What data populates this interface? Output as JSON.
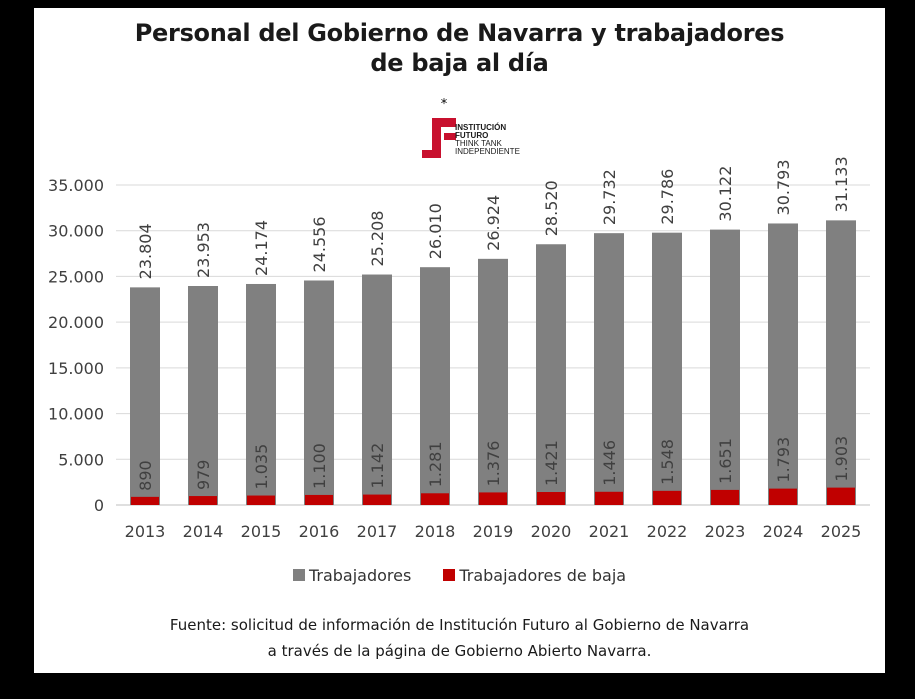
{
  "header": {
    "title_line1": "Personal del Gobierno de Navarra y trabajadores",
    "title_line2": "de baja al día",
    "asterisk": "*"
  },
  "logo": {
    "line1": "INSTITUCIÓN",
    "line2": "FUTURO",
    "line3": "THINK TANK",
    "line4": "INDEPENDIENTE",
    "color": "#c8102e"
  },
  "chart_data": {
    "type": "bar",
    "categories": [
      "2013",
      "2014",
      "2015",
      "2016",
      "2017",
      "2018",
      "2019",
      "2020",
      "2021",
      "2022",
      "2023",
      "2024",
      "2025"
    ],
    "series": [
      {
        "name": "Trabajadores",
        "color": "#808080",
        "values": [
          23804,
          23953,
          24174,
          24556,
          25208,
          26010,
          26924,
          28520,
          29732,
          29786,
          30122,
          30793,
          31133
        ],
        "labels": [
          "23.804",
          "23.953",
          "24.174",
          "24.556",
          "25.208",
          "26.010",
          "26.924",
          "28.520",
          "29.732",
          "29.786",
          "30.122",
          "30.793",
          "31.133"
        ]
      },
      {
        "name": "Trabajadores de baja",
        "color": "#c00000",
        "values": [
          890,
          979,
          1035,
          1100,
          1142,
          1281,
          1376,
          1421,
          1446,
          1548,
          1651,
          1793,
          1903
        ],
        "labels": [
          "890",
          "979",
          "1.035",
          "1.100",
          "1.142",
          "1.281",
          "1.376",
          "1.421",
          "1.446",
          "1.548",
          "1.651",
          "1.793",
          "1.903"
        ]
      }
    ],
    "ylim": [
      0,
      35000
    ],
    "yticks": [
      0,
      5000,
      10000,
      15000,
      20000,
      25000,
      30000,
      35000
    ],
    "ytick_labels": [
      "0",
      "5.000",
      "10.000",
      "15.000",
      "20.000",
      "25.000",
      "30.000",
      "35.000"
    ],
    "grid": true,
    "legend_position": "bottom"
  },
  "source": {
    "line1": "Fuente: solicitud de información de Institución Futuro al Gobierno de Navarra",
    "line2": "a través de la página de Gobierno Abierto Navarra."
  }
}
